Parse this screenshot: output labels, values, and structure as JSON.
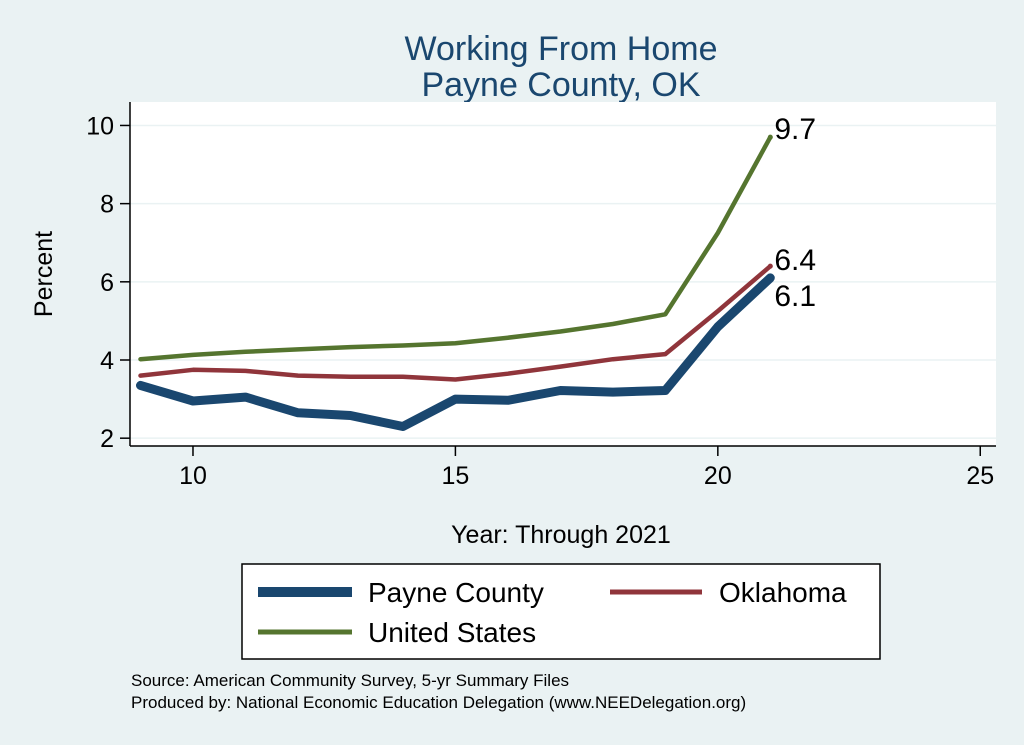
{
  "chart_data": {
    "type": "line",
    "title": [
      "Working From Home",
      "Payne County, OK"
    ],
    "xlabel": "Year: Through 2021",
    "ylabel": "Percent",
    "xlim": [
      8.8,
      25.3
    ],
    "ylim": [
      1.8,
      10.6
    ],
    "xticks": [
      10,
      15,
      20,
      25
    ],
    "yticks": [
      2,
      4,
      6,
      8,
      10
    ],
    "grid": "horizontal",
    "series": [
      {
        "name": "Payne County",
        "color": "#1a476f",
        "x": [
          9,
          10,
          11,
          12,
          13,
          14,
          15,
          16,
          17,
          18,
          19,
          20,
          21
        ],
        "y": [
          3.35,
          2.95,
          3.05,
          2.65,
          2.58,
          2.3,
          3.0,
          2.97,
          3.22,
          3.18,
          3.22,
          4.85,
          6.1
        ],
        "end_label": "6.1"
      },
      {
        "name": "Oklahoma",
        "color": "#90353b",
        "x": [
          9,
          10,
          11,
          12,
          13,
          14,
          15,
          16,
          17,
          18,
          19,
          20,
          21
        ],
        "y": [
          3.6,
          3.75,
          3.72,
          3.6,
          3.57,
          3.57,
          3.5,
          3.65,
          3.83,
          4.02,
          4.15,
          5.25,
          6.4
        ],
        "end_label": "6.4"
      },
      {
        "name": "United States",
        "color": "#55752f",
        "x": [
          9,
          10,
          11,
          12,
          13,
          14,
          15,
          16,
          17,
          18,
          19,
          20,
          21
        ],
        "y": [
          4.02,
          4.13,
          4.21,
          4.27,
          4.33,
          4.37,
          4.43,
          4.57,
          4.73,
          4.92,
          5.17,
          7.25,
          9.7
        ],
        "end_label": "9.7"
      }
    ],
    "legend": {
      "placement": "bottom",
      "items": [
        "Payne County",
        "Oklahoma",
        "United States"
      ]
    },
    "notes": [
      "Source: American Community Survey, 5-yr Summary Files",
      "Produced by: National Economic Education Delegation (www.NEEDelegation.org)"
    ]
  }
}
